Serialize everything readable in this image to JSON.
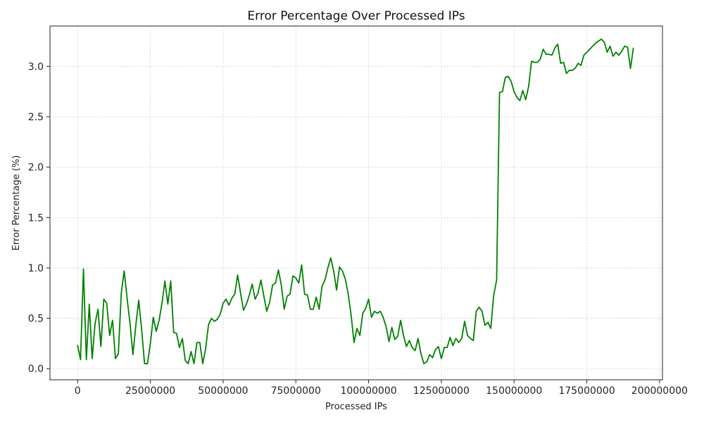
{
  "chart_data": {
    "type": "line",
    "title": "Error Percentage Over Processed IPs",
    "xlabel": "Processed IPs",
    "ylabel": "Error Percentage (%)",
    "xlim": [
      -9500000,
      201000000
    ],
    "ylim": [
      -0.11,
      3.4
    ],
    "xticks": [
      0,
      25000000,
      50000000,
      75000000,
      100000000,
      125000000,
      150000000,
      175000000,
      200000000
    ],
    "xtick_labels": [
      "0",
      "25000000",
      "50000000",
      "75000000",
      "100000000",
      "125000000",
      "150000000",
      "175000000",
      "200000000"
    ],
    "yticks": [
      0.0,
      0.5,
      1.0,
      1.5,
      2.0,
      2.5,
      3.0
    ],
    "ytick_labels": [
      "0.0",
      "0.5",
      "1.0",
      "1.5",
      "2.0",
      "2.5",
      "3.0"
    ],
    "grid": true,
    "series_color": "#008000",
    "series": [
      {
        "x": [
          0,
          1000000,
          2000000,
          3000000,
          4000000,
          5000000,
          6000000,
          7000000,
          8000000,
          9000000,
          10000000,
          11000000,
          12000000,
          13000000,
          14000000,
          15000000,
          16000000,
          17000000,
          18000000,
          19000000,
          20000000,
          21000000,
          22000000,
          23000000,
          24000000,
          25000000,
          26000000,
          27000000,
          28000000,
          29000000,
          30000000,
          31000000,
          32000000,
          33000000,
          34000000,
          35000000,
          36000000,
          37000000,
          38000000,
          39000000,
          40000000,
          41000000,
          42000000,
          43000000,
          44000000,
          45000000,
          46000000,
          47000000,
          48000000,
          49000000,
          50000000,
          51000000,
          52000000,
          53000000,
          54000000,
          55000000,
          56000000,
          57000000,
          58000000,
          59000000,
          60000000,
          61000000,
          62000000,
          63000000,
          64000000,
          65000000,
          66000000,
          67000000,
          68000000,
          69000000,
          70000000,
          71000000,
          72000000,
          73000000,
          74000000,
          75000000,
          76000000,
          77000000,
          78000000,
          79000000,
          80000000,
          81000000,
          82000000,
          83000000,
          84000000,
          85000000,
          86000000,
          87000000,
          88000000,
          89000000,
          90000000,
          91000000,
          92000000,
          93000000,
          94000000,
          95000000,
          96000000,
          97000000,
          98000000,
          99000000,
          100000000,
          101000000,
          102000000,
          103000000,
          104000000,
          105000000,
          106000000,
          107000000,
          108000000,
          109000000,
          110000000,
          111000000,
          112000000,
          113000000,
          114000000,
          115000000,
          116000000,
          117000000,
          118000000,
          119000000,
          120000000,
          121000000,
          122000000,
          123000000,
          124000000,
          125000000,
          126000000,
          127000000,
          128000000,
          129000000,
          130000000,
          131000000,
          132000000,
          133000000,
          134000000,
          135000000,
          136000000,
          137000000,
          138000000,
          139000000,
          140000000,
          141000000,
          142000000,
          143000000,
          144000000,
          145000000,
          146000000,
          147000000,
          148000000,
          149000000,
          150000000,
          151000000,
          152000000,
          153000000,
          154000000,
          155000000,
          156000000,
          157000000,
          158000000,
          159000000,
          160000000,
          161000000,
          162000000,
          163000000,
          164000000,
          165000000,
          166000000,
          167000000,
          168000000,
          169000000,
          170000000,
          171000000,
          172000000,
          173000000,
          174000000,
          175000000,
          176000000,
          177000000,
          178000000,
          179000000,
          180000000,
          181000000,
          182000000,
          183000000,
          184000000,
          185000000,
          186000000,
          187000000,
          188000000,
          189000000,
          190000000,
          191000000
        ],
        "values": [
          0.23,
          0.09,
          0.99,
          0.09,
          0.64,
          0.1,
          0.45,
          0.59,
          0.22,
          0.69,
          0.65,
          0.33,
          0.48,
          0.1,
          0.15,
          0.75,
          0.97,
          0.7,
          0.45,
          0.14,
          0.43,
          0.68,
          0.39,
          0.05,
          0.05,
          0.25,
          0.51,
          0.37,
          0.48,
          0.65,
          0.87,
          0.64,
          0.87,
          0.36,
          0.35,
          0.21,
          0.3,
          0.08,
          0.05,
          0.17,
          0.05,
          0.26,
          0.26,
          0.05,
          0.2,
          0.44,
          0.5,
          0.47,
          0.49,
          0.54,
          0.65,
          0.69,
          0.63,
          0.7,
          0.74,
          0.93,
          0.75,
          0.58,
          0.64,
          0.73,
          0.84,
          0.69,
          0.75,
          0.88,
          0.72,
          0.57,
          0.66,
          0.83,
          0.85,
          0.98,
          0.83,
          0.59,
          0.72,
          0.74,
          0.92,
          0.9,
          0.85,
          1.03,
          0.74,
          0.73,
          0.59,
          0.59,
          0.71,
          0.59,
          0.82,
          0.88,
          1.0,
          1.1,
          0.97,
          0.78,
          1.01,
          0.97,
          0.89,
          0.74,
          0.53,
          0.26,
          0.4,
          0.33,
          0.55,
          0.6,
          0.69,
          0.51,
          0.57,
          0.55,
          0.57,
          0.51,
          0.42,
          0.27,
          0.41,
          0.29,
          0.32,
          0.48,
          0.33,
          0.22,
          0.28,
          0.21,
          0.18,
          0.3,
          0.15,
          0.05,
          0.07,
          0.14,
          0.11,
          0.19,
          0.22,
          0.1,
          0.21,
          0.21,
          0.31,
          0.23,
          0.3,
          0.26,
          0.3,
          0.47,
          0.33,
          0.3,
          0.28,
          0.57,
          0.61,
          0.57,
          0.43,
          0.46,
          0.4,
          0.73,
          0.88,
          2.74,
          2.75,
          2.89,
          2.9,
          2.85,
          2.75,
          2.69,
          2.66,
          2.76,
          2.67,
          2.8,
          3.05,
          3.04,
          3.04,
          3.07,
          3.17,
          3.12,
          3.12,
          3.11,
          3.18,
          3.22,
          3.03,
          3.04,
          2.93,
          2.96,
          2.96,
          2.98,
          3.03,
          3.01,
          3.11,
          3.14,
          3.17,
          3.2,
          3.23,
          3.25,
          3.27,
          3.24,
          3.14,
          3.2,
          3.1,
          3.14,
          3.11,
          3.15,
          3.2,
          3.19,
          2.98,
          3.18
        ]
      }
    ]
  }
}
